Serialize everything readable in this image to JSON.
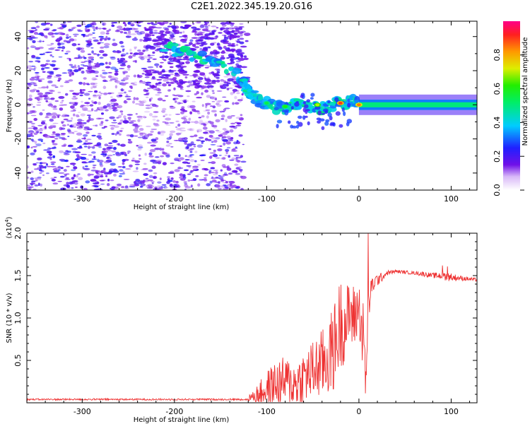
{
  "title": "C2E1.2022.345.19.20.G16",
  "colors": {
    "snr_line": "#ee3333",
    "track": "#33ddaa",
    "scatter": "#6a1fe0"
  },
  "chart_data": [
    {
      "type": "heatmap",
      "title": "C2E1.2022.345.19.20.G16",
      "xlabel": "Height of straight line (km)",
      "ylabel": "Frequency (Hz)",
      "xlim": [
        -360,
        128
      ],
      "ylim": [
        -50,
        49
      ],
      "xticks": [
        -300,
        -200,
        -100,
        0,
        100
      ],
      "yticks": [
        -40,
        -20,
        0,
        20,
        40
      ],
      "colorbar": {
        "label": "Normalized spectral amplitude",
        "range": [
          0.0,
          1.0
        ],
        "ticks": [
          "0.0",
          "0.2",
          "0.4",
          "0.6",
          "0.8"
        ],
        "colormap": "white-purple-blue-cyan-green-yellow-red-magenta"
      },
      "track_points": [
        {
          "x": -210,
          "y": 33
        },
        {
          "x": -190,
          "y": 31
        },
        {
          "x": -170,
          "y": 28
        },
        {
          "x": -150,
          "y": 24
        },
        {
          "x": -125,
          "y": 16
        },
        {
          "x": -122,
          "y": 8
        },
        {
          "x": -118,
          "y": 6
        },
        {
          "x": -110,
          "y": 3
        },
        {
          "x": -100,
          "y": 1
        },
        {
          "x": -90,
          "y": -1
        },
        {
          "x": -80,
          "y": -2
        },
        {
          "x": -70,
          "y": 0
        },
        {
          "x": -60,
          "y": 2
        },
        {
          "x": -50,
          "y": -1
        },
        {
          "x": -40,
          "y": -2
        },
        {
          "x": -30,
          "y": 0
        },
        {
          "x": -20,
          "y": 1
        },
        {
          "x": -10,
          "y": 2
        },
        {
          "x": 0,
          "y": 0
        },
        {
          "x": 50,
          "y": 0
        },
        {
          "x": 128,
          "y": 0
        }
      ],
      "hotspots": [
        {
          "x": -20,
          "y": 1,
          "amp": 0.9
        },
        {
          "x": 0,
          "y": 0,
          "amp": 0.85
        },
        {
          "x": -45,
          "y": 0,
          "amp": 0.7
        },
        {
          "x": -80,
          "y": -1,
          "amp": 0.6
        },
        {
          "x": -100,
          "y": 1,
          "amp": 0.55
        }
      ]
    },
    {
      "type": "line",
      "xlabel": "Height of straight line (km)",
      "ylabel": "SNR (10 * v/v)",
      "y_multiplier": "(x10",
      "y_multiplier_exp": "4",
      "y_multiplier_close": ")",
      "xlim": [
        -360,
        128
      ],
      "ylim": [
        0,
        2.0
      ],
      "xticks": [
        -300,
        -200,
        -100,
        0,
        100
      ],
      "yticks": [
        "0.5",
        "1.0",
        "1.5",
        "2.0"
      ],
      "series": [
        {
          "x": [
            -360,
            -300,
            -200,
            -130,
            -115,
            -100,
            -90,
            -80,
            -70,
            -60,
            -50,
            -40,
            -30,
            -25,
            -20,
            -15,
            -10,
            -5,
            0,
            5,
            8,
            10,
            12,
            15,
            20,
            25,
            30,
            40,
            50,
            60,
            70,
            80,
            90,
            100,
            110,
            128
          ],
          "y": [
            0.04,
            0.04,
            0.04,
            0.04,
            0.07,
            0.16,
            0.22,
            0.25,
            0.22,
            0.3,
            0.38,
            0.45,
            0.58,
            0.72,
            0.95,
            0.92,
            1.05,
            1.0,
            1.15,
            0.7,
            0.25,
            1.05,
            1.25,
            1.4,
            1.45,
            1.48,
            1.53,
            1.55,
            1.54,
            1.53,
            1.52,
            1.5,
            1.5,
            1.48,
            1.47,
            1.45
          ],
          "spread": [
            0,
            0,
            0,
            0,
            0.06,
            0.22,
            0.28,
            0.3,
            0.28,
            0.32,
            0.36,
            0.42,
            0.5,
            0.55,
            0.55,
            0.45,
            0.4,
            0.4,
            0.3,
            0.5,
            0.4,
            0.25,
            0.15,
            0.12,
            0.08,
            0.05,
            0.03,
            0.02,
            0.02,
            0.02,
            0.03,
            0.03,
            0.05,
            0.05,
            0.03,
            0.02
          ]
        }
      ],
      "spike": {
        "x": 10,
        "y": 2.0
      }
    }
  ]
}
